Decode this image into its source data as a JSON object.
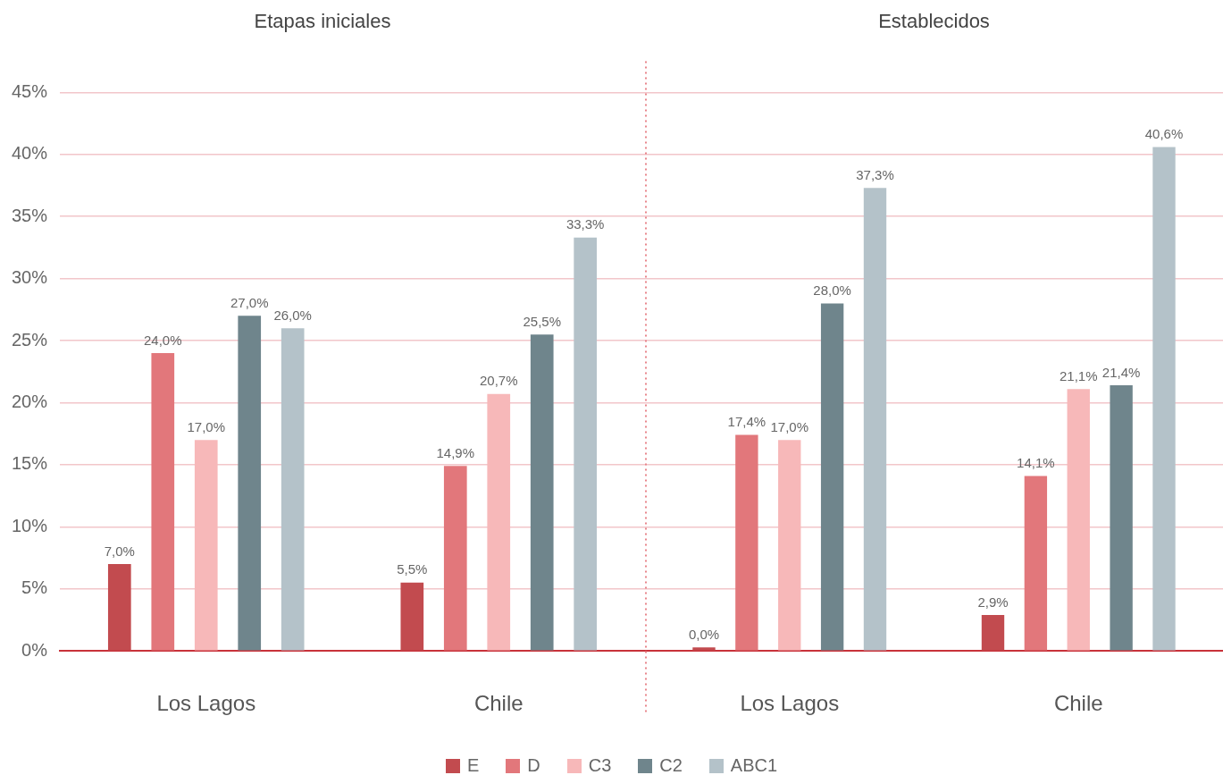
{
  "chart_data": [
    {
      "type": "bar",
      "title": "Etapas iniciales",
      "categories": [
        "Los Lagos",
        "Chile"
      ],
      "series": [
        {
          "name": "E",
          "color": "#c24b4f",
          "values": [
            7.0,
            5.5
          ],
          "value_labels": [
            "7,0%",
            "5,5%"
          ]
        },
        {
          "name": "D",
          "color": "#e2777b",
          "values": [
            24.0,
            14.9
          ],
          "value_labels": [
            "24,0%",
            "14,9%"
          ]
        },
        {
          "name": "C3",
          "color": "#f7b8b9",
          "values": [
            17.0,
            20.7
          ],
          "value_labels": [
            "17,0%",
            "20,7%"
          ]
        },
        {
          "name": "C2",
          "color": "#6f858c",
          "values": [
            27.0,
            25.5
          ],
          "value_labels": [
            "27,0%",
            "25,5%"
          ]
        },
        {
          "name": "ABC1",
          "color": "#b4c2c9",
          "values": [
            26.0,
            33.3
          ],
          "value_labels": [
            "26,0%",
            "33,3%"
          ]
        }
      ],
      "ylim": [
        0,
        45
      ],
      "yticks": [
        {
          "value": 0,
          "label": "0%"
        },
        {
          "value": 5,
          "label": "5%"
        },
        {
          "value": 10,
          "label": "10%"
        },
        {
          "value": 15,
          "label": "15%"
        },
        {
          "value": 20,
          "label": "20%"
        },
        {
          "value": 25,
          "label": "25%"
        },
        {
          "value": 30,
          "label": "30%"
        },
        {
          "value": 35,
          "label": "35%"
        },
        {
          "value": 40,
          "label": "40%"
        },
        {
          "value": 45,
          "label": "45%"
        }
      ],
      "grid": "y",
      "legend": "bottom"
    },
    {
      "type": "bar",
      "title": "Establecidos",
      "categories": [
        "Los Lagos",
        "Chile"
      ],
      "series": [
        {
          "color": "#c24b4f",
          "values": [
            0.0,
            2.9
          ],
          "value_labels": [
            "0,0%",
            "2,9%"
          ]
        },
        {
          "color": "#e2777b",
          "values": [
            17.4,
            14.1
          ],
          "value_labels": [
            "17,4%",
            "14,1%"
          ]
        },
        {
          "color": "#f7b8b9",
          "values": [
            17.0,
            21.1
          ],
          "value_labels": [
            "17,0%",
            "21,1%"
          ]
        },
        {
          "color": "#6f858c",
          "values": [
            28.0,
            21.4
          ],
          "value_labels": [
            "28,0%",
            "21,4%"
          ]
        },
        {
          "color": "#b4c2c9",
          "values": [
            37.3,
            40.6
          ],
          "value_labels": [
            "37,3%",
            "40,6%"
          ]
        }
      ],
      "ylim": [
        0,
        45
      ],
      "yticks": [
        0,
        5,
        10,
        15,
        20,
        25,
        30,
        35,
        40,
        45
      ],
      "grid": "y",
      "tick_labels": "x"
    }
  ]
}
